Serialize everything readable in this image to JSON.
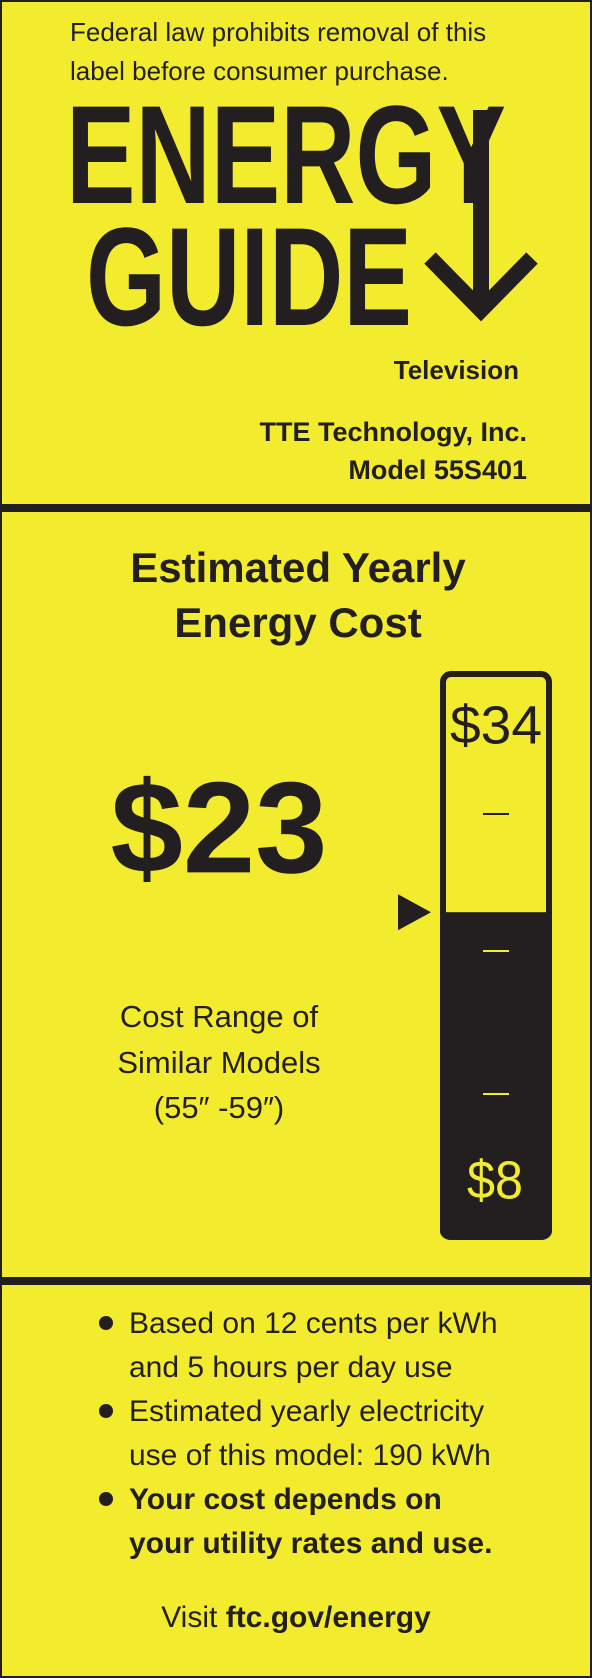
{
  "header": {
    "notice": [
      "Federal law prohibits removal of this",
      "label before consumer purchase."
    ],
    "logo": [
      "ENERGY",
      "GUIDE"
    ],
    "product": "Television",
    "manufacturer": "TTE Technology, Inc.",
    "model": "Model 55S401"
  },
  "cost": {
    "heading": [
      "Estimated Yearly",
      "Energy Cost"
    ],
    "range_caption": [
      "Cost Range of",
      "Similar Models",
      "(55″ -59″)"
    ]
  },
  "gauge": {
    "min": 8,
    "max": 34,
    "value": 23,
    "min_label": "$8",
    "max_label": "$34",
    "value_label": "$23"
  },
  "footer": {
    "bullets": [
      {
        "lines": [
          "Based on 12 cents per kWh",
          "and 5 hours per day use"
        ],
        "bold": false
      },
      {
        "lines": [
          "Estimated yearly electricity",
          "use of this model: 190 kWh"
        ],
        "bold": false
      },
      {
        "lines": [
          "Your cost depends on",
          "your utility rates and use."
        ],
        "bold": true
      }
    ],
    "visit": "Visit",
    "link": "ftc.gov/energy"
  }
}
